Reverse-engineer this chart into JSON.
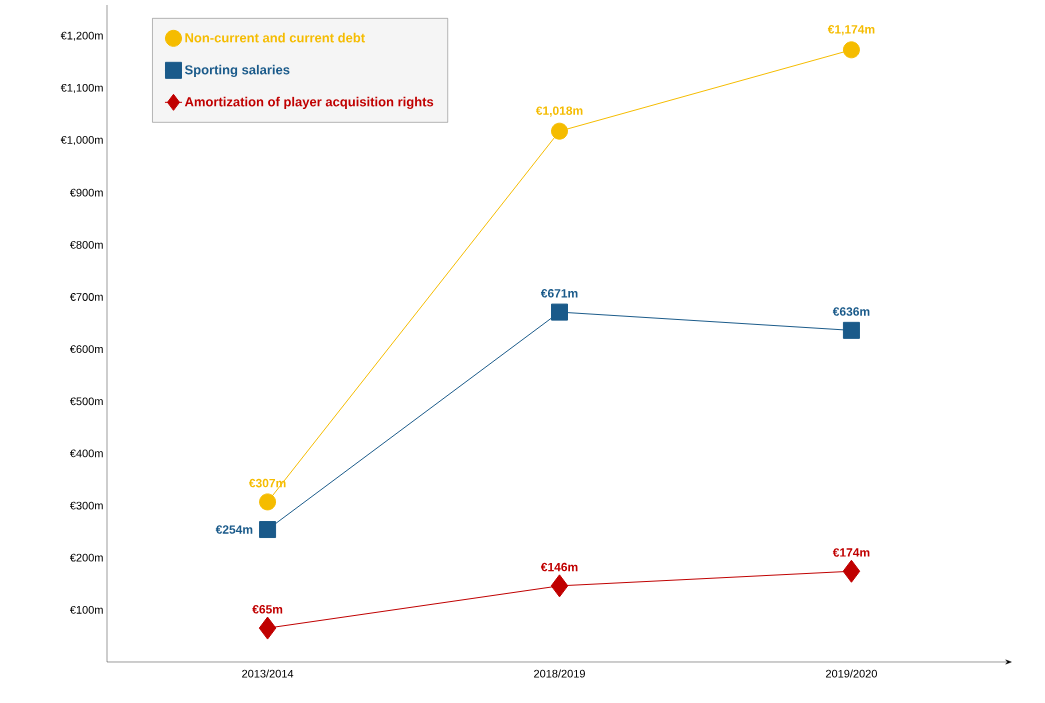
{
  "chart_data": {
    "type": "line",
    "categories": [
      "2013/2014",
      "2018/2019",
      "2019/2020"
    ],
    "ylim": [
      0,
      1260
    ],
    "yticks": [
      {
        "value": 100,
        "label": "€100m"
      },
      {
        "value": 200,
        "label": "€200m"
      },
      {
        "value": 300,
        "label": "€300m"
      },
      {
        "value": 400,
        "label": "€400m"
      },
      {
        "value": 500,
        "label": "€500m"
      },
      {
        "value": 600,
        "label": "€600m"
      },
      {
        "value": 700,
        "label": "€700m"
      },
      {
        "value": 800,
        "label": "€800m"
      },
      {
        "value": 900,
        "label": "€900m"
      },
      {
        "value": 1000,
        "label": "€1,000m"
      },
      {
        "value": 1100,
        "label": "€1,100m"
      },
      {
        "value": 1200,
        "label": "€1,200m"
      }
    ],
    "legend": "top left",
    "series": [
      {
        "name": "Non-current and current debt",
        "color": "#f5bc00",
        "marker": "circle",
        "values": [
          307,
          1018,
          1174
        ],
        "value_labels": [
          "€307m",
          "€1,018m",
          "€1,174m"
        ]
      },
      {
        "name": "Sporting salaries",
        "color": "#1a5a8a",
        "marker": "square",
        "values": [
          254,
          671,
          636
        ],
        "value_labels": [
          "€254m",
          "€671m",
          "€636m"
        ]
      },
      {
        "name": "Amortization of player acquisition rights",
        "color": "#c00000",
        "marker": "diamond",
        "values": [
          65,
          146,
          174
        ],
        "value_labels": [
          "€65m",
          "€146m",
          "€174m"
        ]
      }
    ]
  }
}
